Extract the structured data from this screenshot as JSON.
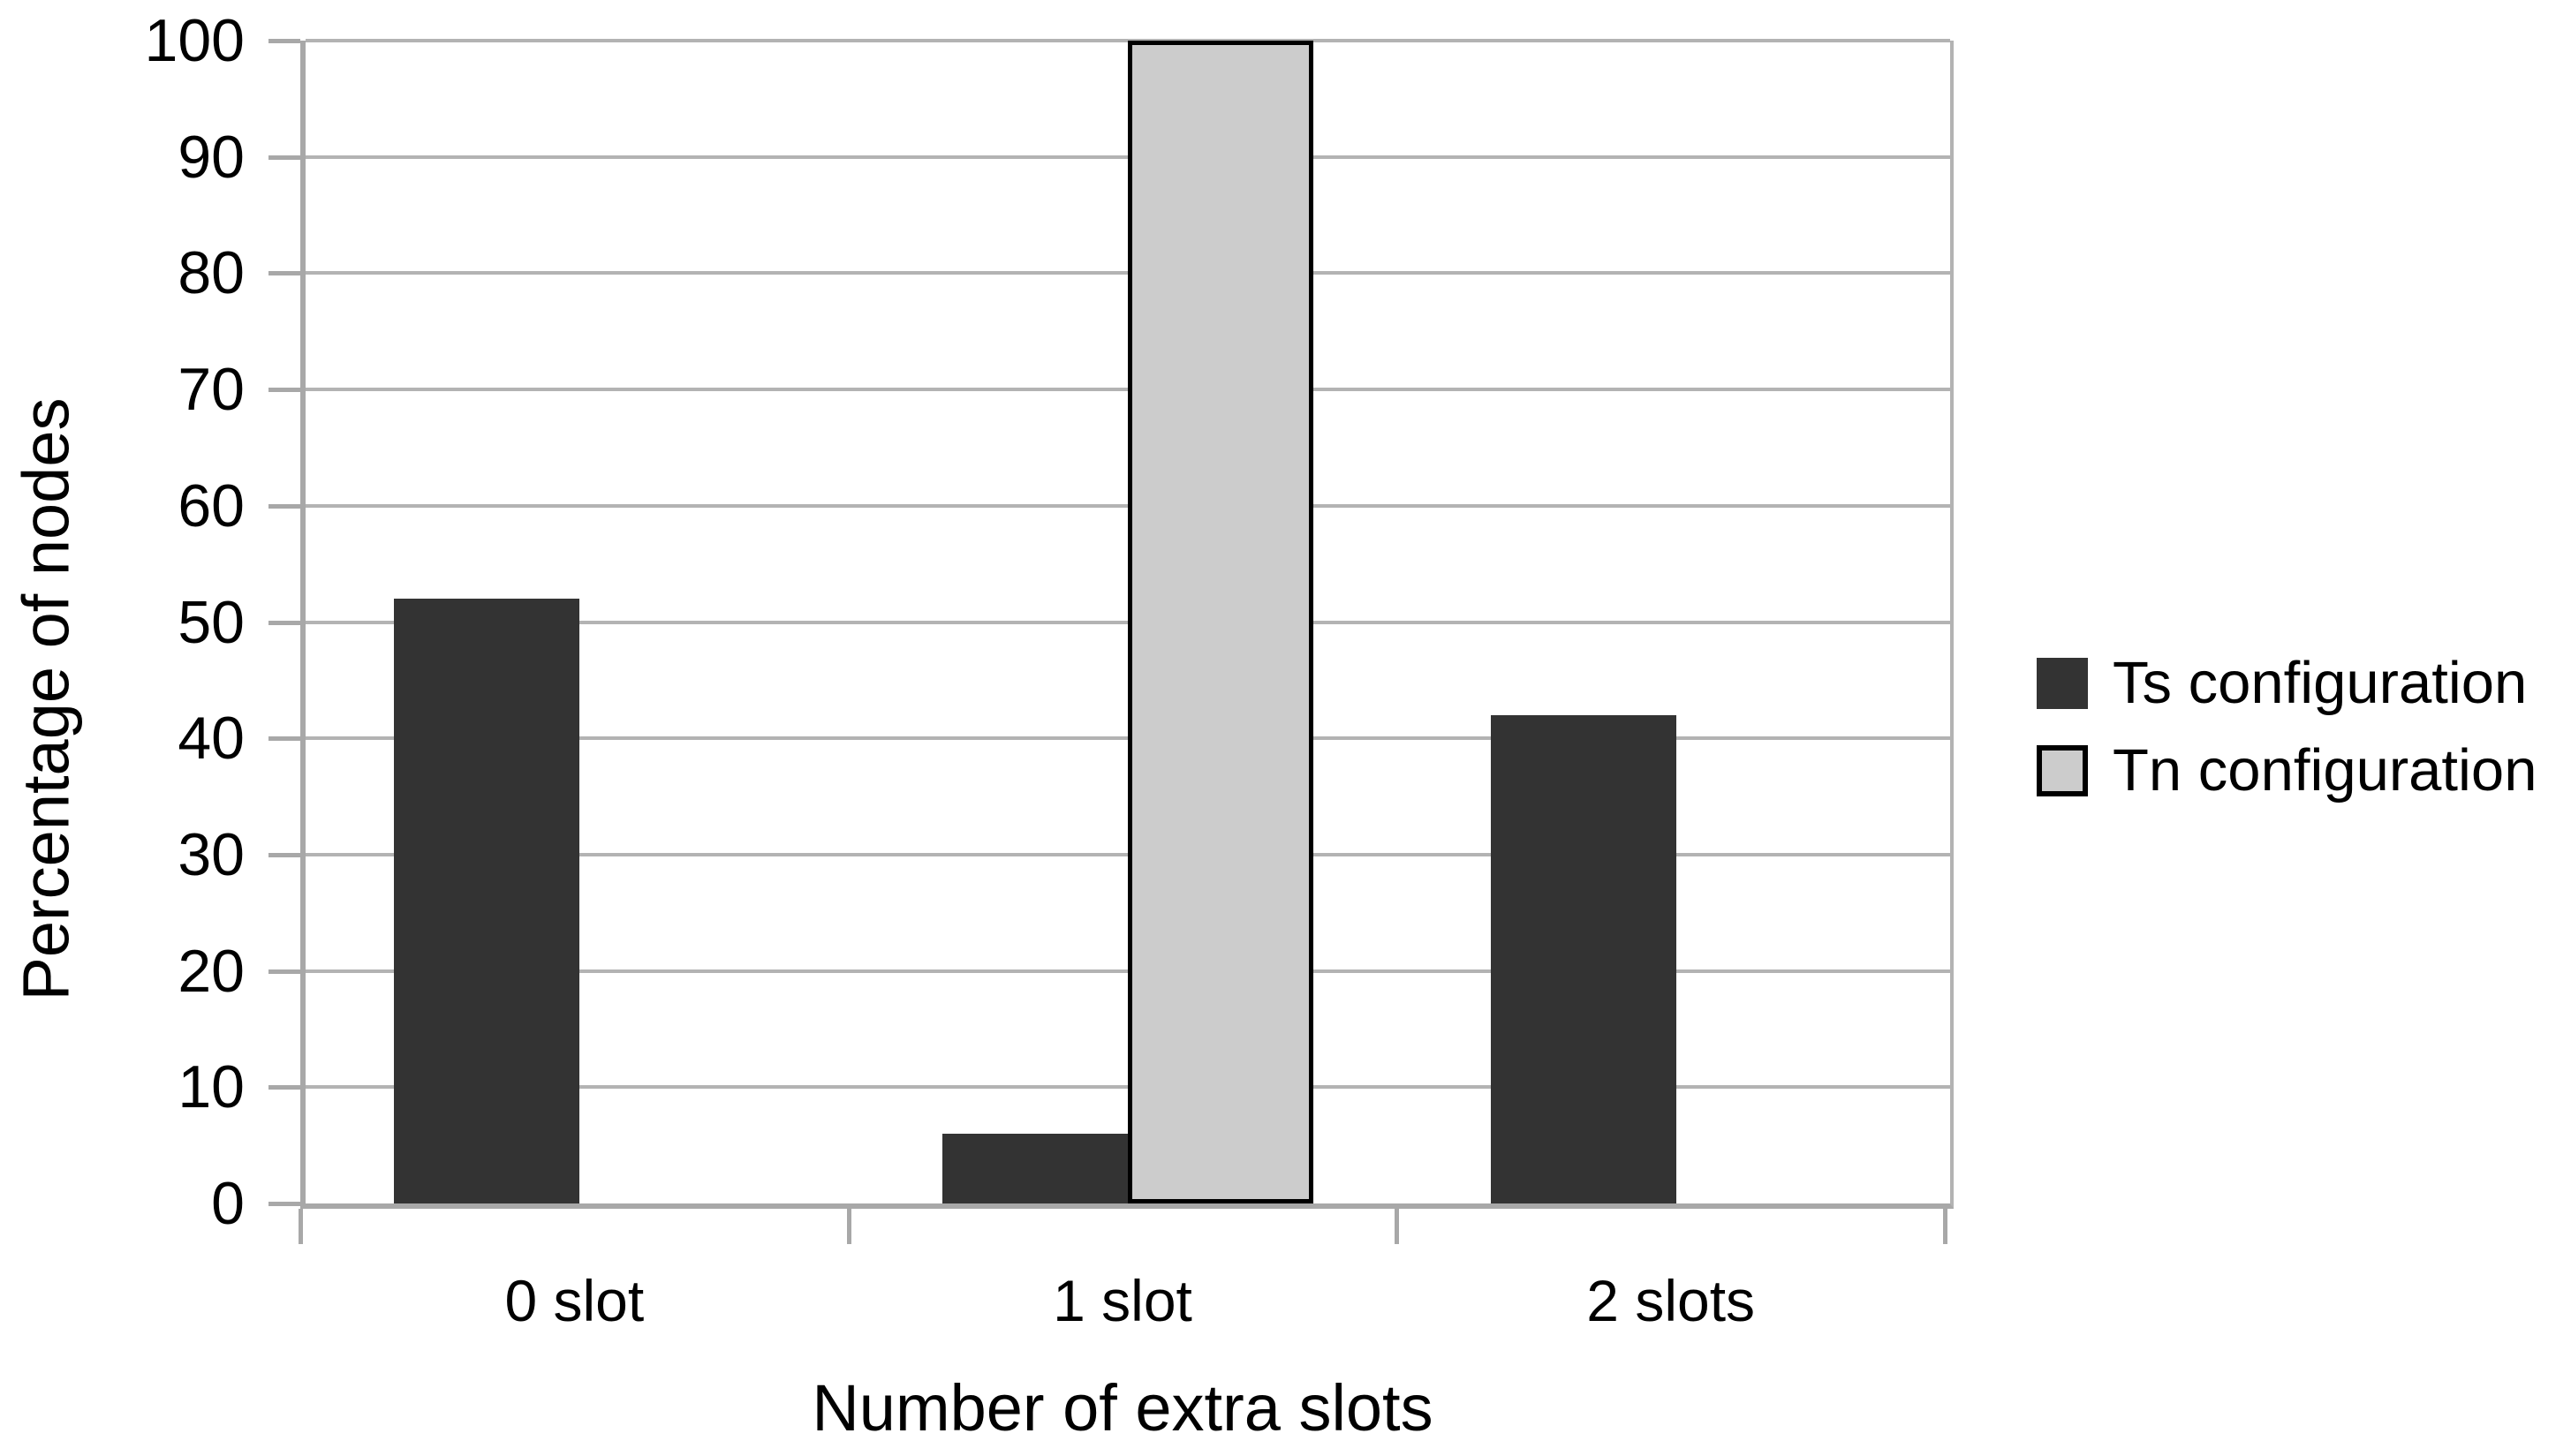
{
  "chart_data": {
    "type": "bar",
    "title": "",
    "categories": [
      "0 slot",
      "1 slot",
      "2 slots"
    ],
    "series": [
      {
        "name": "Ts configuration",
        "values": [
          52,
          6,
          42
        ],
        "fill": "#333333",
        "stroke": "none"
      },
      {
        "name": "Tn configuration",
        "values": [
          0,
          100,
          0
        ],
        "fill": "#cccccc",
        "stroke": "#000000"
      }
    ],
    "xlabel": "Number of extra slots",
    "ylabel": "Percentage of nodes",
    "ylim": [
      0,
      100
    ],
    "ytick_step": 10,
    "ytick_labels": [
      "0",
      "10",
      "20",
      "30",
      "40",
      "50",
      "60",
      "70",
      "80",
      "90",
      "100"
    ],
    "grid": "horizontal",
    "legend_position": "right",
    "colors": {
      "background": "#ffffff",
      "gridline": "#b3b3b3",
      "axis": "#a8a8a8",
      "text": "#000000"
    }
  }
}
